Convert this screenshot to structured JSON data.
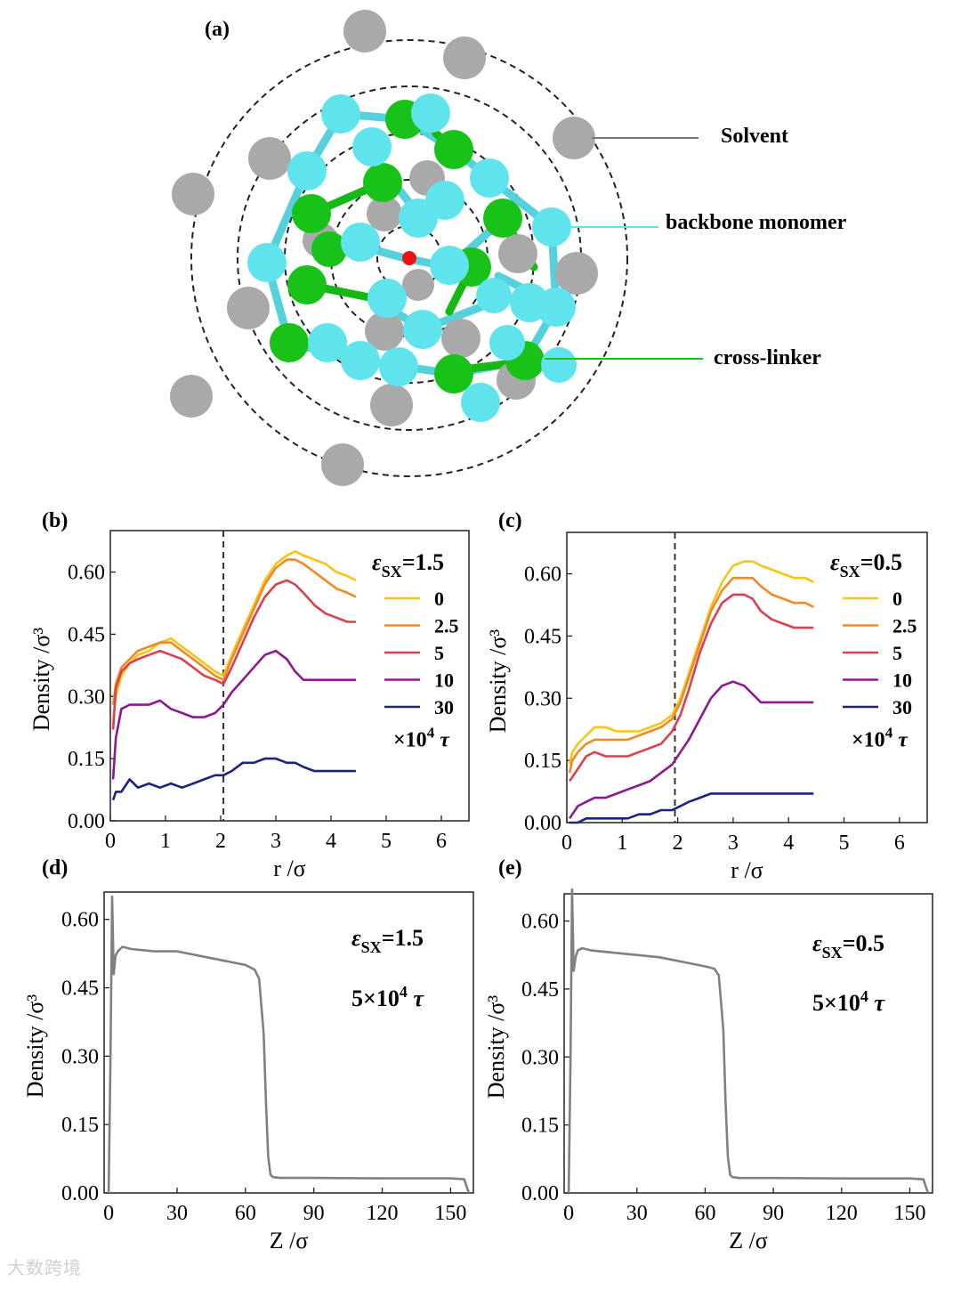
{
  "panel_a": {
    "label": "(a)",
    "legend": {
      "solvent": "Solvent",
      "backbone": "backbone monomer",
      "crosslinker": "cross-linker"
    },
    "colors": {
      "solvent": "#a9a9a9",
      "backbone": "#5fe3ec",
      "crosslinker": "#18c218",
      "center": "#ee1111"
    }
  },
  "watermark": "大数跨境",
  "chart_data": [
    {
      "id": "b",
      "panel_label": "(b)",
      "type": "line",
      "xlabel": "r /σ",
      "ylabel": "Density /σ³",
      "xlim": [
        0,
        6.5
      ],
      "ylim": [
        0,
        0.7
      ],
      "xticks": [
        "0",
        "1",
        "2",
        "3",
        "4",
        "5",
        "6"
      ],
      "yticks": [
        "0.00",
        "0.15",
        "0.30",
        "0.45",
        "0.60"
      ],
      "ref_line_x": 2.05,
      "legend_title": "ε_SX=1.5",
      "legend_title_parts": [
        "ε",
        "SX",
        "=1.5"
      ],
      "legend_unit": "×10⁴ τ",
      "legend_unit_parts": [
        "×10",
        "4",
        " τ"
      ],
      "x": [
        0.05,
        0.1,
        0.2,
        0.35,
        0.5,
        0.7,
        0.9,
        1.1,
        1.3,
        1.5,
        1.7,
        1.9,
        2.05,
        2.2,
        2.4,
        2.6,
        2.8,
        3.0,
        3.2,
        3.35,
        3.5,
        3.7,
        3.9,
        4.1,
        4.3,
        4.45
      ],
      "series": [
        {
          "name": "0",
          "color": "#f5c518",
          "values": [
            0.24,
            0.3,
            0.35,
            0.38,
            0.4,
            0.41,
            0.43,
            0.44,
            0.42,
            0.4,
            0.38,
            0.36,
            0.35,
            0.4,
            0.46,
            0.52,
            0.58,
            0.62,
            0.64,
            0.65,
            0.64,
            0.63,
            0.62,
            0.6,
            0.59,
            0.58
          ]
        },
        {
          "name": "2.5",
          "color": "#f08a24",
          "values": [
            0.28,
            0.33,
            0.37,
            0.39,
            0.41,
            0.42,
            0.43,
            0.43,
            0.41,
            0.39,
            0.37,
            0.35,
            0.34,
            0.39,
            0.45,
            0.51,
            0.57,
            0.61,
            0.63,
            0.63,
            0.62,
            0.6,
            0.58,
            0.56,
            0.55,
            0.54
          ]
        },
        {
          "name": "5",
          "color": "#d94050",
          "values": [
            0.22,
            0.32,
            0.36,
            0.38,
            0.39,
            0.4,
            0.41,
            0.4,
            0.39,
            0.37,
            0.35,
            0.34,
            0.33,
            0.37,
            0.43,
            0.49,
            0.54,
            0.57,
            0.58,
            0.57,
            0.55,
            0.52,
            0.5,
            0.49,
            0.48,
            0.48
          ]
        },
        {
          "name": "10",
          "color": "#8b1a8c",
          "values": [
            0.1,
            0.2,
            0.27,
            0.28,
            0.28,
            0.28,
            0.29,
            0.27,
            0.26,
            0.25,
            0.25,
            0.26,
            0.28,
            0.31,
            0.34,
            0.37,
            0.4,
            0.41,
            0.39,
            0.36,
            0.34,
            0.34,
            0.34,
            0.34,
            0.34,
            0.34
          ]
        },
        {
          "name": "30",
          "color": "#1a237e",
          "values": [
            0.05,
            0.07,
            0.07,
            0.1,
            0.08,
            0.09,
            0.08,
            0.09,
            0.08,
            0.09,
            0.1,
            0.11,
            0.11,
            0.12,
            0.14,
            0.14,
            0.15,
            0.15,
            0.14,
            0.14,
            0.13,
            0.12,
            0.12,
            0.12,
            0.12,
            0.12
          ]
        }
      ]
    },
    {
      "id": "c",
      "panel_label": "(c)",
      "type": "line",
      "xlabel": "r /σ",
      "ylabel": "Density /σ³",
      "xlim": [
        0,
        6.5
      ],
      "ylim": [
        0,
        0.7
      ],
      "xticks": [
        "0",
        "1",
        "2",
        "3",
        "4",
        "5",
        "6"
      ],
      "yticks": [
        "0.00",
        "0.15",
        "0.30",
        "0.45",
        "0.60"
      ],
      "ref_line_x": 1.95,
      "legend_title": "ε_SX=0.5",
      "legend_title_parts": [
        "ε",
        "SX",
        "=0.5"
      ],
      "legend_unit": "×10⁴ τ",
      "legend_unit_parts": [
        "×10",
        "4",
        " τ"
      ],
      "x": [
        0.05,
        0.1,
        0.2,
        0.35,
        0.5,
        0.7,
        0.9,
        1.1,
        1.3,
        1.5,
        1.7,
        1.9,
        2.05,
        2.2,
        2.4,
        2.6,
        2.8,
        3.0,
        3.2,
        3.35,
        3.5,
        3.7,
        3.9,
        4.1,
        4.3,
        4.45
      ],
      "series": [
        {
          "name": "0",
          "color": "#f5c518",
          "values": [
            0.14,
            0.17,
            0.19,
            0.21,
            0.23,
            0.23,
            0.22,
            0.22,
            0.22,
            0.23,
            0.24,
            0.26,
            0.3,
            0.36,
            0.44,
            0.52,
            0.58,
            0.62,
            0.63,
            0.63,
            0.62,
            0.61,
            0.6,
            0.59,
            0.59,
            0.58
          ]
        },
        {
          "name": "2.5",
          "color": "#f08a24",
          "values": [
            0.12,
            0.15,
            0.17,
            0.19,
            0.2,
            0.2,
            0.2,
            0.2,
            0.21,
            0.22,
            0.23,
            0.25,
            0.29,
            0.35,
            0.43,
            0.51,
            0.56,
            0.59,
            0.59,
            0.59,
            0.57,
            0.55,
            0.54,
            0.53,
            0.53,
            0.52
          ]
        },
        {
          "name": "5",
          "color": "#d94050",
          "values": [
            0.1,
            0.11,
            0.13,
            0.16,
            0.17,
            0.16,
            0.16,
            0.16,
            0.17,
            0.18,
            0.19,
            0.22,
            0.26,
            0.32,
            0.41,
            0.48,
            0.53,
            0.55,
            0.55,
            0.54,
            0.51,
            0.49,
            0.48,
            0.47,
            0.47,
            0.47
          ]
        },
        {
          "name": "10",
          "color": "#8b1a8c",
          "values": [
            0.01,
            0.02,
            0.04,
            0.05,
            0.06,
            0.06,
            0.07,
            0.08,
            0.09,
            0.1,
            0.12,
            0.14,
            0.17,
            0.2,
            0.25,
            0.3,
            0.33,
            0.34,
            0.33,
            0.31,
            0.29,
            0.29,
            0.29,
            0.29,
            0.29,
            0.29
          ]
        },
        {
          "name": "30",
          "color": "#1a237e",
          "values": [
            0.0,
            0.0,
            0.0,
            0.01,
            0.01,
            0.01,
            0.01,
            0.01,
            0.02,
            0.02,
            0.03,
            0.03,
            0.04,
            0.05,
            0.06,
            0.07,
            0.07,
            0.07,
            0.07,
            0.07,
            0.07,
            0.07,
            0.07,
            0.07,
            0.07,
            0.07
          ]
        }
      ]
    },
    {
      "id": "d",
      "panel_label": "(d)",
      "type": "line",
      "xlabel": "Z /σ",
      "ylabel": "Density /σ³",
      "xlim": [
        -2,
        160
      ],
      "ylim": [
        0,
        0.66
      ],
      "xticks": [
        "0",
        "30",
        "60",
        "90",
        "120",
        "150"
      ],
      "yticks": [
        "0.00",
        "0.15",
        "0.30",
        "0.45",
        "0.60"
      ],
      "annotation": "ε_SX=1.5",
      "annotation_parts": [
        "ε",
        "SX",
        "=1.5"
      ],
      "annotation_time": "5×10⁴ τ",
      "annotation_time_parts": [
        "5×10",
        "4",
        " τ"
      ],
      "series": [
        {
          "name": "density",
          "color": "#808080",
          "x": [
            0,
            0.8,
            1.5,
            2.2,
            3,
            4,
            6,
            10,
            20,
            30,
            40,
            50,
            60,
            64,
            66,
            68,
            69,
            70,
            71,
            72,
            75,
            90,
            120,
            150,
            156,
            157,
            158
          ],
          "values": [
            0.0,
            0.3,
            0.65,
            0.48,
            0.52,
            0.53,
            0.54,
            0.535,
            0.53,
            0.53,
            0.52,
            0.51,
            0.5,
            0.49,
            0.47,
            0.35,
            0.2,
            0.08,
            0.04,
            0.035,
            0.033,
            0.033,
            0.032,
            0.032,
            0.03,
            0.015,
            0.0
          ]
        }
      ]
    },
    {
      "id": "e",
      "panel_label": "(e)",
      "type": "line",
      "xlabel": "Z /σ",
      "ylabel": "Density /σ³",
      "xlim": [
        -2,
        160
      ],
      "ylim": [
        0,
        0.66
      ],
      "xticks": [
        "0",
        "30",
        "60",
        "90",
        "120",
        "150"
      ],
      "yticks": [
        "0.00",
        "0.15",
        "0.30",
        "0.45",
        "0.60"
      ],
      "annotation": "ε_SX=0.5",
      "annotation_parts": [
        "ε",
        "SX",
        "=0.5"
      ],
      "annotation_time": "5×10⁴ τ",
      "annotation_time_parts": [
        "5×10",
        "4",
        " τ"
      ],
      "series": [
        {
          "name": "density",
          "color": "#808080",
          "x": [
            0,
            0.8,
            1.5,
            2.2,
            3,
            4,
            6,
            10,
            20,
            30,
            40,
            50,
            60,
            64,
            66,
            68,
            69,
            70,
            71,
            72,
            75,
            90,
            120,
            150,
            156,
            157,
            158
          ],
          "values": [
            0.0,
            0.3,
            0.67,
            0.49,
            0.52,
            0.535,
            0.54,
            0.535,
            0.53,
            0.525,
            0.52,
            0.51,
            0.5,
            0.495,
            0.48,
            0.36,
            0.2,
            0.08,
            0.04,
            0.035,
            0.033,
            0.033,
            0.032,
            0.032,
            0.03,
            0.015,
            0.0
          ]
        }
      ]
    }
  ]
}
